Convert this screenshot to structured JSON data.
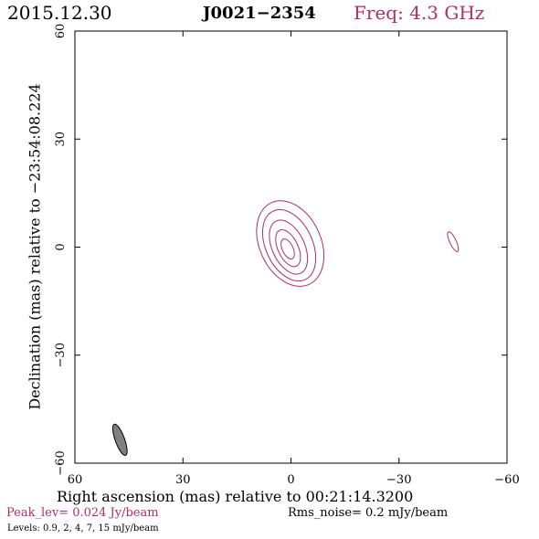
{
  "header": {
    "date": "2015.12.30",
    "source": "J0021−2354",
    "freq": "Freq: 4.3 GHz"
  },
  "axes": {
    "ylabel": "Declination (mas) relative to −23:54:08.224",
    "xlabel": "Right ascension (mas) relative to 00:21:14.3200",
    "x_ticks": [
      "60",
      "30",
      "0",
      "−30",
      "−60"
    ],
    "y_ticks": [
      "60",
      "30",
      "0",
      "−30",
      "−60"
    ],
    "x_range": [
      60,
      -60
    ],
    "y_range": [
      -60,
      60
    ]
  },
  "footer": {
    "peak": "Peak_lev=  0.024 Jy/beam",
    "rms": "Rms_noise=  0.2 mJy/beam",
    "levels": "Levels: 0.9,   2,   4,   7,   15 mJy/beam"
  },
  "colors": {
    "contour": "#b0305a",
    "beam_fill": "#808080",
    "frame": "#000000"
  },
  "map": {
    "core": {
      "center": [
        0.5,
        0.0
      ],
      "contours": [
        {
          "rx": 8.5,
          "ry": 12.5,
          "angle": -25,
          "dx": -0.3,
          "dy": 1.0
        },
        {
          "rx": 6.5,
          "ry": 10.5,
          "angle": -25,
          "dx": 0.0,
          "dy": 0.5
        },
        {
          "rx": 4.5,
          "ry": 8.0,
          "angle": -25,
          "dx": 0.2,
          "dy": 0.0
        },
        {
          "rx": 2.8,
          "ry": 5.5,
          "angle": -25,
          "dx": 0.3,
          "dy": -0.3
        },
        {
          "rx": 1.5,
          "ry": 3.0,
          "angle": -25,
          "dx": 0.4,
          "dy": -0.5
        }
      ]
    },
    "blob": {
      "center": [
        -45,
        1.5
      ],
      "rx": 0.9,
      "ry": 3.0,
      "angle": -25
    },
    "beam": {
      "center": [
        47.5,
        -53.5
      ],
      "rx": 1.3,
      "ry": 4.6,
      "angle": -20
    }
  }
}
